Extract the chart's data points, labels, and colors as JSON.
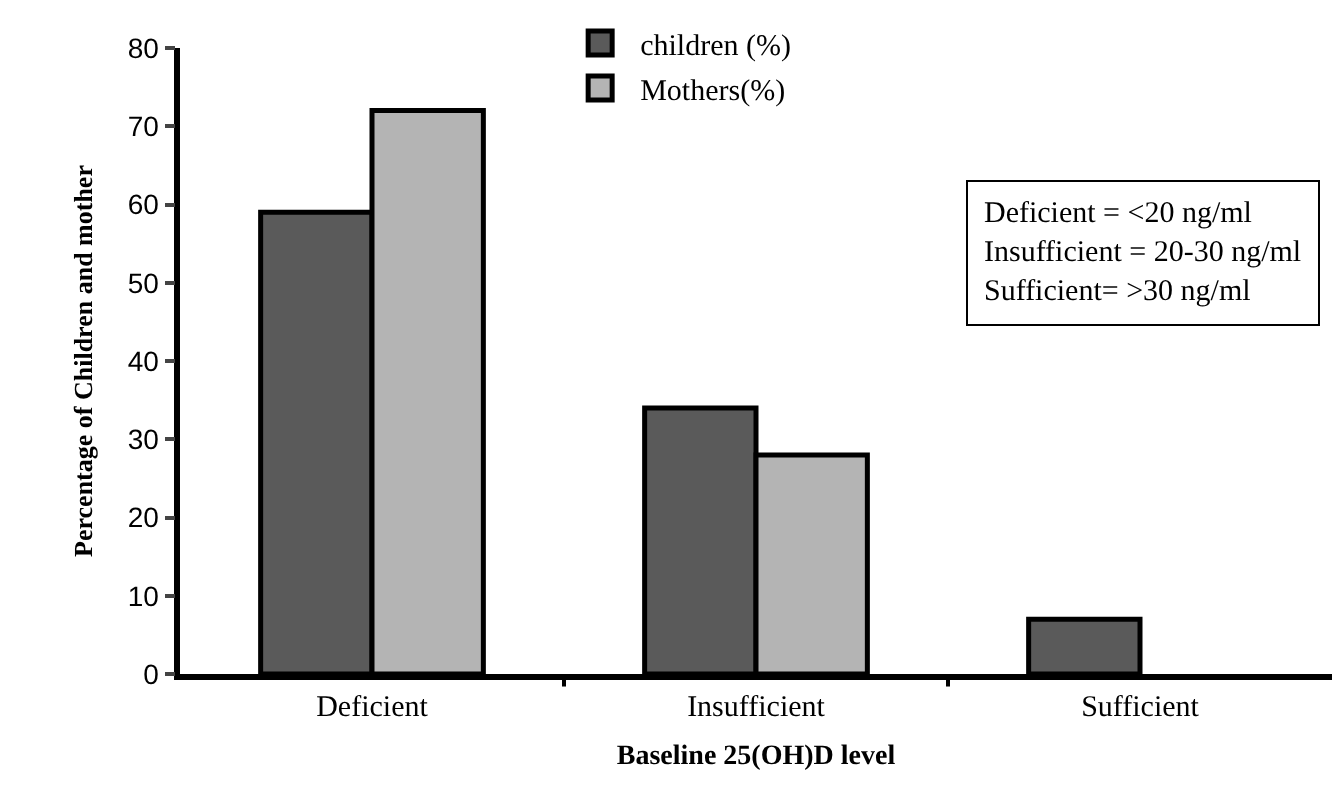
{
  "chart_data": {
    "type": "bar",
    "xlabel": "Baseline 25(OH)D level",
    "ylabel": "Percentage of Children and mother",
    "categories": [
      "Deficient",
      "Insufficient",
      "Sufficient"
    ],
    "series": [
      {
        "name": "children (%)",
        "color": "#5a5a5a",
        "values": [
          59,
          34,
          7
        ]
      },
      {
        "name": "Mothers(%)",
        "color": "#b4b4b4",
        "values": [
          72,
          28,
          null
        ]
      }
    ],
    "ylim": [
      0,
      80
    ],
    "yticks": [
      0,
      10,
      20,
      30,
      40,
      50,
      60,
      70,
      80
    ],
    "legend": "top",
    "annotations": [
      "Deficient = <20 ng/ml\nInsufficient = 20-30 ng/ml\nSufficient= >30 ng/ml"
    ]
  }
}
